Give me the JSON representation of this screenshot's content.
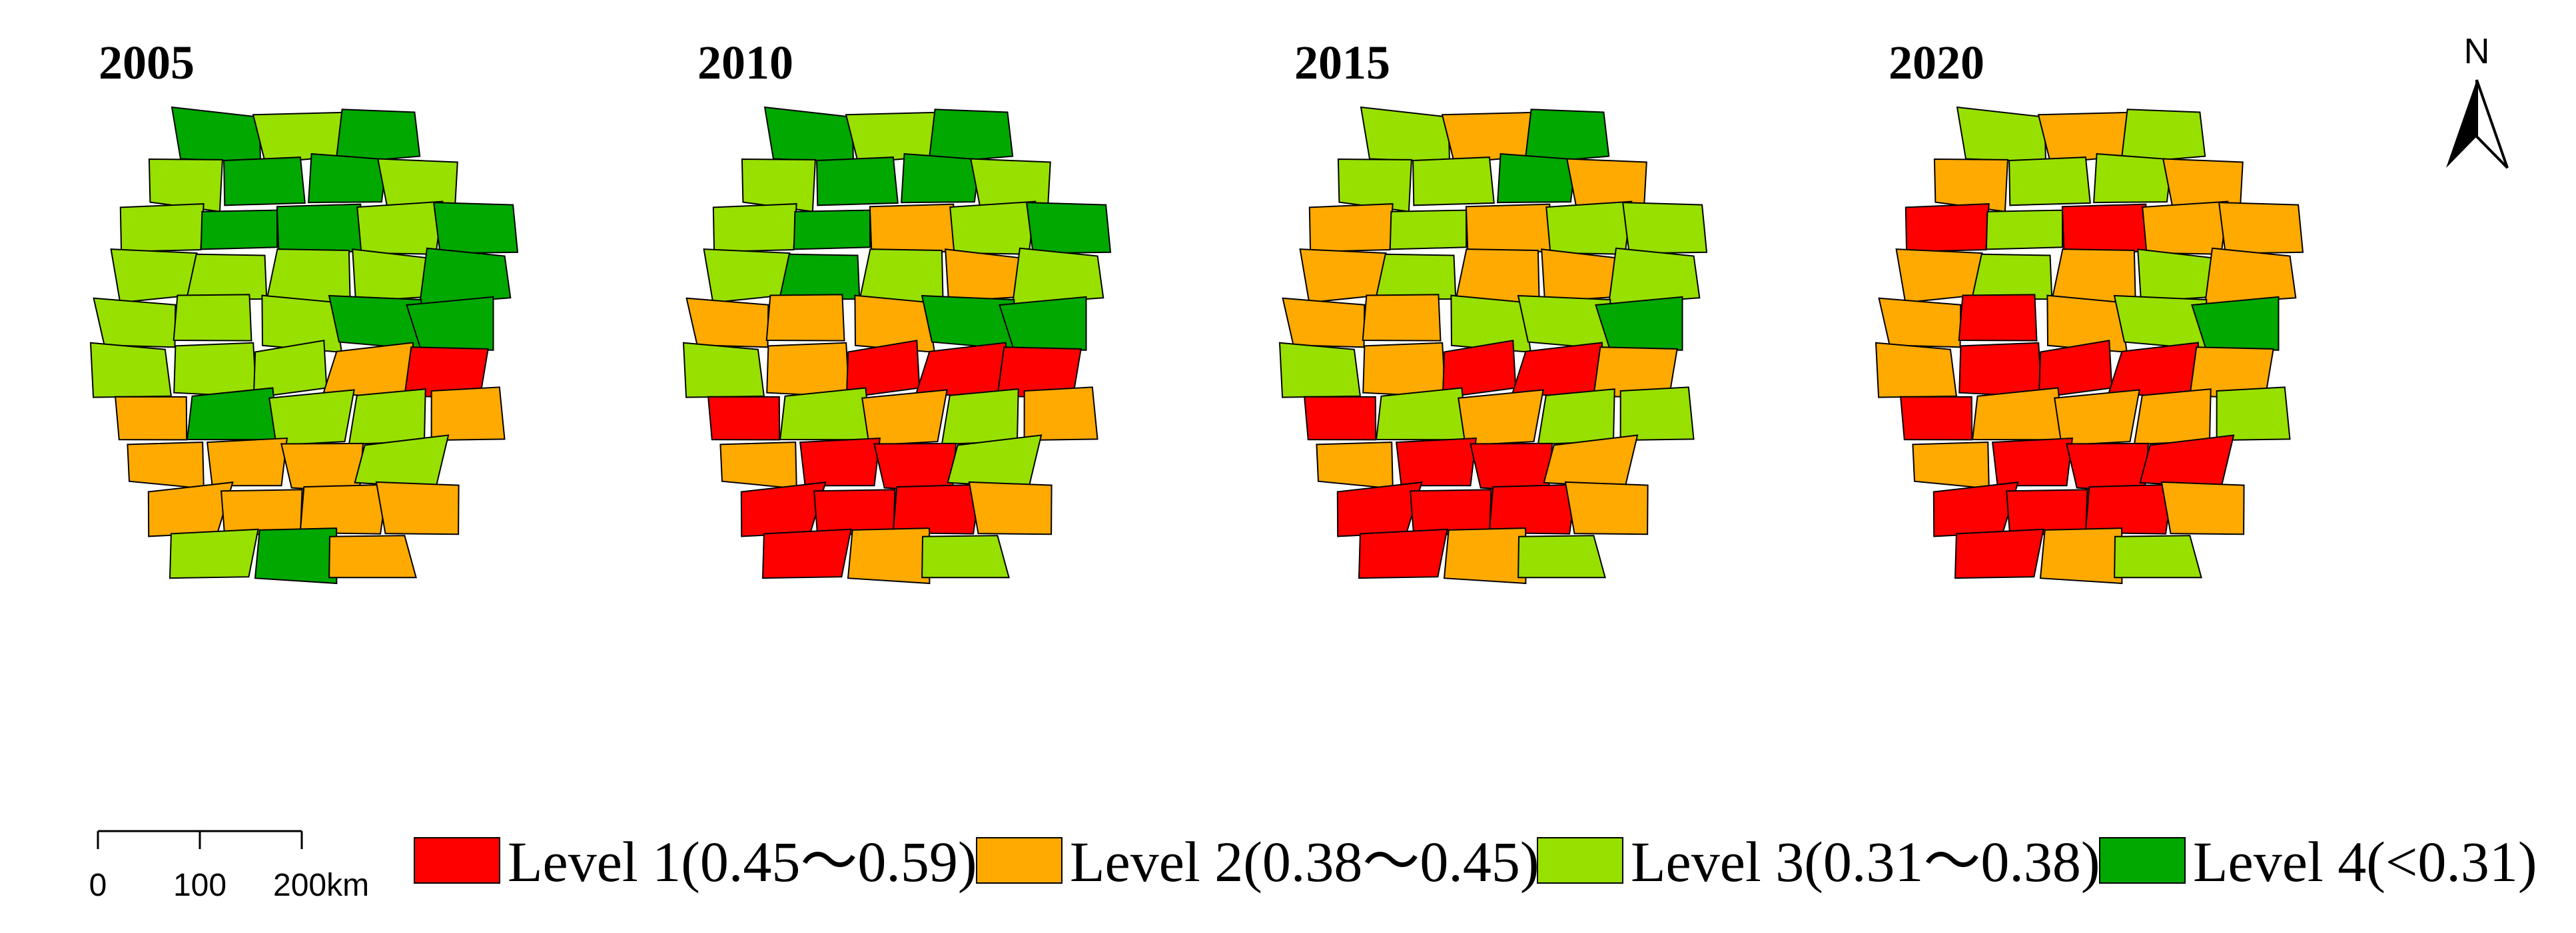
{
  "maps": [
    {
      "year": "2005",
      "levels": [
        "4",
        "3",
        "4",
        "3",
        "4",
        "4",
        "3",
        "3",
        "4",
        "4",
        "3",
        "4",
        "3",
        "3",
        "3",
        "3",
        "4",
        "3",
        "3",
        "3",
        "4",
        "4",
        "3",
        "3",
        "3",
        "2",
        "1",
        "2",
        "4",
        "3",
        "3",
        "2",
        "2",
        "2",
        "2",
        "3",
        "2",
        "2",
        "2",
        "2",
        "3",
        "4",
        "2",
        "3"
      ]
    },
    {
      "year": "2010",
      "levels": [
        "4",
        "3",
        "4",
        "3",
        "4",
        "4",
        "3",
        "3",
        "4",
        "2",
        "3",
        "4",
        "3",
        "4",
        "3",
        "2",
        "3",
        "2",
        "2",
        "2",
        "4",
        "4",
        "3",
        "2",
        "1",
        "1",
        "1",
        "1",
        "3",
        "2",
        "3",
        "2",
        "2",
        "1",
        "1",
        "3",
        "1",
        "1",
        "1",
        "2",
        "1",
        "2",
        "3",
        "2"
      ]
    },
    {
      "year": "2015",
      "levels": [
        "3",
        "2",
        "4",
        "3",
        "3",
        "4",
        "2",
        "2",
        "3",
        "2",
        "3",
        "3",
        "2",
        "3",
        "2",
        "2",
        "3",
        "2",
        "2",
        "3",
        "3",
        "4",
        "3",
        "2",
        "1",
        "1",
        "2",
        "1",
        "3",
        "2",
        "3",
        "3",
        "2",
        "1",
        "1",
        "2",
        "1",
        "1",
        "1",
        "2",
        "1",
        "2",
        "3",
        "4"
      ]
    },
    {
      "year": "2020",
      "levels": [
        "3",
        "2",
        "3",
        "2",
        "3",
        "3",
        "2",
        "1",
        "3",
        "1",
        "2",
        "2",
        "2",
        "3",
        "2",
        "3",
        "2",
        "2",
        "1",
        "2",
        "3",
        "4",
        "2",
        "1",
        "1",
        "1",
        "2",
        "1",
        "2",
        "2",
        "2",
        "3",
        "2",
        "1",
        "1",
        "1",
        "1",
        "1",
        "1",
        "2",
        "1",
        "2",
        "3",
        "4"
      ]
    }
  ],
  "legend": {
    "items": [
      {
        "label": "Level 1(0.45～0.59)",
        "color": "#ff0000"
      },
      {
        "label": "Level 2(0.38～0.45)",
        "color": "#ffaa00"
      },
      {
        "label": "Level 3(0.31～0.38)",
        "color": "#98e000"
      },
      {
        "label": "Level 4(<0.31)",
        "color": "#00a800"
      }
    ]
  },
  "scale_bar": {
    "labels": [
      "0",
      "100",
      "200km"
    ]
  },
  "north_arrow": {
    "label": "N"
  }
}
